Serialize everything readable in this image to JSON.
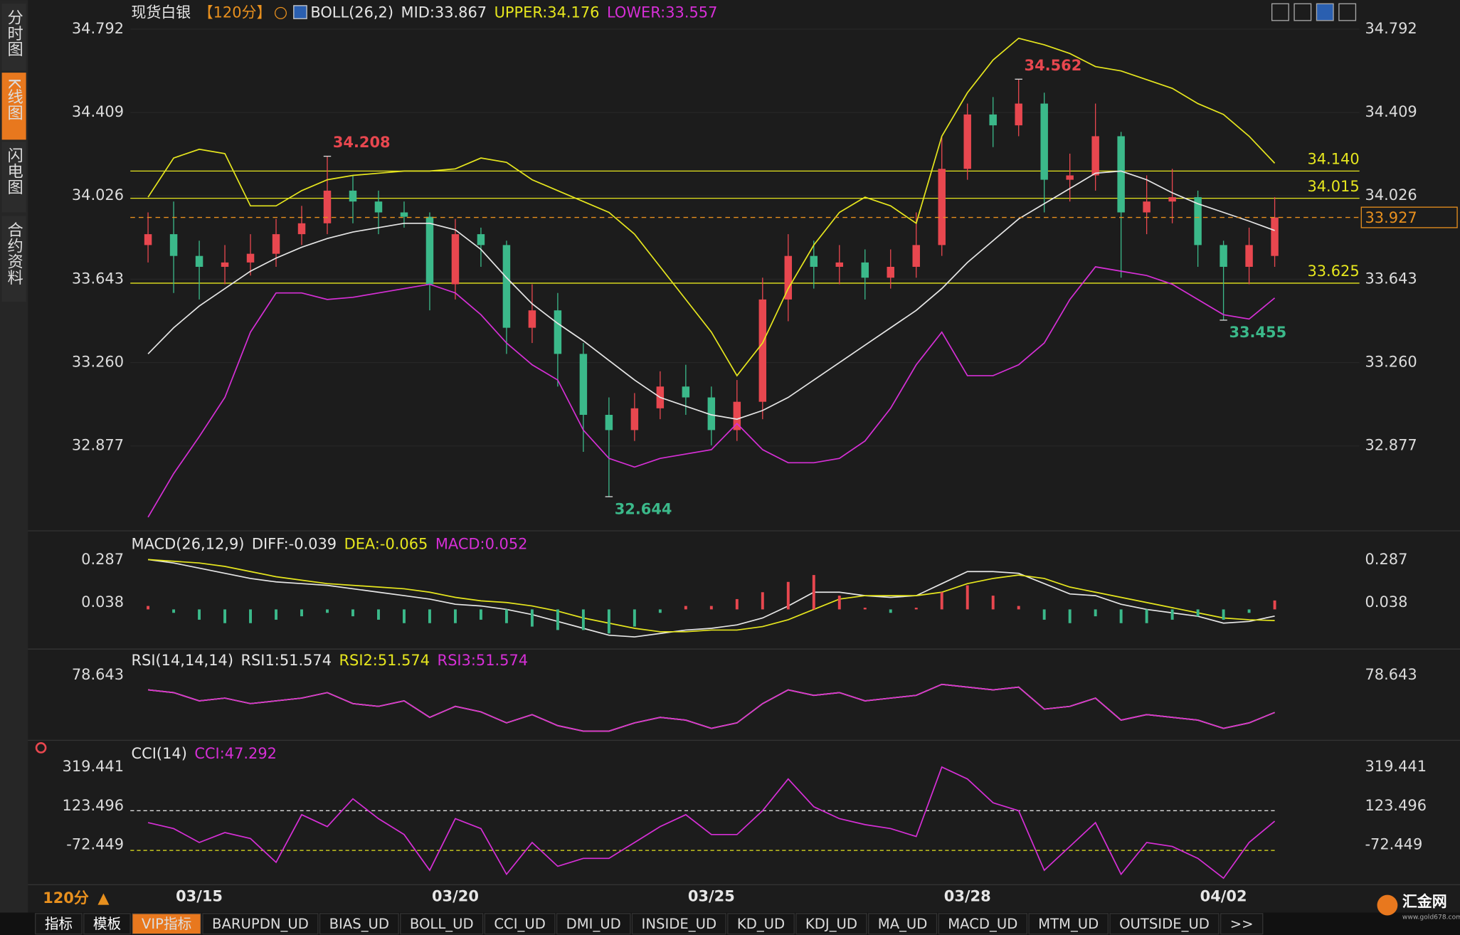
{
  "chart_data": [
    {
      "type": "candlestick",
      "title": "现货白银",
      "period_label": "【120分】",
      "indicator": "BOLL(26,2)",
      "categories": [
        null,
        null,
        "03/15",
        null,
        null,
        null,
        null,
        null,
        null,
        null,
        null,
        null,
        "03/20",
        null,
        null,
        null,
        null,
        null,
        null,
        null,
        null,
        null,
        "03/25",
        null,
        null,
        null,
        null,
        null,
        null,
        null,
        null,
        null,
        "03/28",
        null,
        null,
        null,
        null,
        null,
        null,
        null,
        null,
        null,
        "04/02",
        null,
        null
      ],
      "open": [
        33.8,
        33.85,
        33.75,
        33.7,
        33.72,
        33.76,
        33.85,
        33.9,
        34.05,
        34.0,
        33.95,
        33.93,
        33.62,
        33.85,
        33.8,
        33.42,
        33.5,
        33.3,
        33.02,
        32.95,
        33.05,
        33.15,
        33.1,
        32.95,
        33.08,
        33.55,
        33.75,
        33.7,
        33.72,
        33.65,
        33.7,
        33.8,
        34.15,
        34.4,
        34.35,
        34.45,
        34.1,
        34.12,
        34.3,
        33.95,
        34.0,
        34.02,
        33.8,
        33.7,
        33.75
      ],
      "high": [
        33.95,
        34.0,
        33.82,
        33.8,
        33.85,
        33.92,
        33.98,
        34.208,
        34.12,
        34.05,
        34.0,
        33.95,
        33.92,
        33.88,
        33.82,
        33.62,
        33.58,
        33.35,
        33.1,
        33.12,
        33.22,
        33.25,
        33.15,
        33.18,
        33.65,
        33.85,
        33.82,
        33.8,
        33.78,
        33.78,
        33.95,
        34.3,
        34.45,
        34.48,
        34.562,
        34.5,
        34.22,
        34.45,
        34.32,
        34.12,
        34.15,
        34.05,
        33.82,
        33.88,
        34.02
      ],
      "low": [
        33.72,
        33.58,
        33.55,
        33.62,
        33.66,
        33.7,
        33.8,
        33.85,
        33.9,
        33.85,
        33.88,
        33.5,
        33.55,
        33.7,
        33.3,
        33.35,
        33.15,
        32.85,
        32.644,
        32.9,
        33.0,
        33.02,
        32.88,
        32.9,
        33.0,
        33.45,
        33.6,
        33.62,
        33.55,
        33.6,
        33.65,
        33.75,
        34.1,
        34.25,
        34.3,
        33.95,
        34.0,
        34.05,
        33.65,
        33.85,
        33.9,
        33.7,
        33.455,
        33.62,
        33.7
      ],
      "close": [
        33.85,
        33.75,
        33.7,
        33.72,
        33.76,
        33.85,
        33.9,
        34.05,
        34.0,
        33.95,
        33.93,
        33.62,
        33.85,
        33.8,
        33.42,
        33.5,
        33.3,
        33.02,
        32.95,
        33.05,
        33.15,
        33.1,
        32.95,
        33.08,
        33.55,
        33.75,
        33.7,
        33.72,
        33.65,
        33.7,
        33.8,
        34.15,
        34.4,
        34.35,
        34.45,
        34.1,
        34.12,
        34.3,
        33.95,
        34.0,
        34.02,
        33.8,
        33.7,
        33.8,
        33.927
      ],
      "up_color": "#e8474f",
      "down_color": "#3bb98a",
      "series": [
        {
          "name": "MID:33.867",
          "color": "#e6e6e6",
          "values": [
            33.3,
            33.42,
            33.52,
            33.6,
            33.68,
            33.74,
            33.79,
            33.83,
            33.86,
            33.88,
            33.9,
            33.9,
            33.87,
            33.78,
            33.65,
            33.53,
            33.44,
            33.36,
            33.27,
            33.18,
            33.1,
            33.06,
            33.02,
            33.0,
            33.04,
            33.1,
            33.18,
            33.26,
            33.34,
            33.42,
            33.5,
            33.6,
            33.72,
            33.82,
            33.92,
            33.99,
            34.06,
            34.13,
            34.14,
            34.1,
            34.04,
            33.99,
            33.95,
            33.91,
            33.867
          ]
        },
        {
          "name": "UPPER:34.176",
          "color": "#e6e61e",
          "values": [
            34.02,
            34.2,
            34.24,
            34.22,
            33.98,
            33.98,
            34.05,
            34.1,
            34.12,
            34.13,
            34.14,
            34.14,
            34.15,
            34.2,
            34.18,
            34.1,
            34.05,
            34.0,
            33.95,
            33.85,
            33.7,
            33.55,
            33.4,
            33.2,
            33.35,
            33.6,
            33.8,
            33.95,
            34.02,
            33.98,
            33.9,
            34.3,
            34.5,
            34.65,
            34.75,
            34.72,
            34.68,
            34.62,
            34.6,
            34.56,
            34.52,
            34.45,
            34.4,
            34.3,
            34.176
          ]
        },
        {
          "name": "LOWER:33.557",
          "color": "#d62fd6",
          "values": [
            32.55,
            32.75,
            32.92,
            33.1,
            33.4,
            33.58,
            33.58,
            33.55,
            33.56,
            33.58,
            33.6,
            33.62,
            33.58,
            33.48,
            33.35,
            33.25,
            33.18,
            32.95,
            32.82,
            32.78,
            32.82,
            32.84,
            32.86,
            32.98,
            32.86,
            32.8,
            32.8,
            32.82,
            32.9,
            33.05,
            33.25,
            33.4,
            33.2,
            33.2,
            33.25,
            33.35,
            33.55,
            33.7,
            33.68,
            33.66,
            33.62,
            33.55,
            33.48,
            33.46,
            33.557
          ]
        }
      ],
      "ylim": [
        32.5,
        34.9
      ],
      "yticks": [
        34.792,
        34.409,
        34.026,
        33.643,
        {
          "value": 33.26,
          "label": "33.260"
        },
        32.877
      ],
      "grid": true,
      "hlines": [
        {
          "value": 34.14,
          "label": "34.140",
          "color": "#e6e61e"
        },
        {
          "value": 34.015,
          "label": "34.015",
          "color": "#e6e61e"
        },
        {
          "value": 33.625,
          "label": "33.625",
          "color": "#e6e61e"
        }
      ],
      "last_price": {
        "value": 33.927,
        "color": "#e8901e"
      },
      "annotations": [
        {
          "value": 34.208,
          "index": 7,
          "color": "#e8474f",
          "side": "high"
        },
        {
          "value": 34.562,
          "index": 34,
          "color": "#e8474f",
          "side": "high"
        },
        {
          "value": 32.644,
          "index": 18,
          "color": "#3bb98a",
          "side": "low"
        },
        {
          "value": 33.455,
          "index": 42,
          "color": "#3bb98a",
          "side": "low"
        }
      ]
    },
    {
      "type": "macd",
      "title": "MACD(26,12,9)",
      "series": [
        {
          "name": "DIFF:-0.039",
          "color": "#e6e6e6",
          "values": [
            0.29,
            0.27,
            0.24,
            0.21,
            0.18,
            0.16,
            0.15,
            0.14,
            0.12,
            0.1,
            0.08,
            0.06,
            0.03,
            0.02,
            0.0,
            -0.03,
            -0.07,
            -0.11,
            -0.15,
            -0.16,
            -0.14,
            -0.12,
            -0.11,
            -0.09,
            -0.05,
            0.02,
            0.1,
            0.1,
            0.08,
            0.07,
            0.08,
            0.15,
            0.22,
            0.22,
            0.21,
            0.15,
            0.09,
            0.08,
            0.03,
            0.0,
            -0.02,
            -0.04,
            -0.08,
            -0.07,
            -0.039
          ]
        },
        {
          "name": "DEA:-0.065",
          "color": "#e6e61e",
          "values": [
            0.29,
            0.28,
            0.27,
            0.25,
            0.22,
            0.19,
            0.17,
            0.15,
            0.14,
            0.13,
            0.12,
            0.1,
            0.07,
            0.05,
            0.04,
            0.02,
            -0.01,
            -0.05,
            -0.08,
            -0.11,
            -0.13,
            -0.13,
            -0.12,
            -0.12,
            -0.1,
            -0.06,
            0.0,
            0.06,
            0.08,
            0.08,
            0.08,
            0.1,
            0.15,
            0.18,
            0.2,
            0.18,
            0.13,
            0.1,
            0.07,
            0.04,
            0.01,
            -0.02,
            -0.05,
            -0.06,
            -0.065
          ]
        },
        {
          "name": "MACD:0.052",
          "color": "#d62fd6",
          "style": "histogram",
          "values": [
            0.02,
            -0.02,
            -0.06,
            -0.08,
            -0.08,
            -0.06,
            -0.04,
            -0.02,
            -0.04,
            -0.06,
            -0.08,
            -0.08,
            -0.08,
            -0.06,
            -0.08,
            -0.1,
            -0.12,
            -0.12,
            -0.14,
            -0.1,
            -0.02,
            0.02,
            0.02,
            0.06,
            0.1,
            0.16,
            0.2,
            0.08,
            0.01,
            -0.02,
            0.01,
            0.1,
            0.14,
            0.08,
            0.02,
            -0.06,
            -0.08,
            -0.04,
            -0.08,
            -0.08,
            -0.06,
            -0.04,
            -0.06,
            -0.02,
            0.052
          ]
        }
      ],
      "up_color": "#e8474f",
      "down_color": "#3bb98a",
      "ylim": [
        -0.22,
        0.43
      ],
      "yticks": [
        0.287,
        0.038
      ]
    },
    {
      "type": "line",
      "title": "RSI(14,14,14)",
      "series": [
        {
          "name": "RSI1:51.574",
          "color": "#e6e6e6",
          "values": [
            68,
            66,
            60,
            62,
            58,
            60,
            62,
            66,
            58,
            56,
            60,
            48,
            56,
            52,
            44,
            50,
            42,
            38,
            38,
            44,
            48,
            46,
            40,
            44,
            58,
            68,
            64,
            66,
            60,
            62,
            64,
            72,
            70,
            68,
            70,
            54,
            56,
            62,
            46,
            50,
            48,
            46,
            40,
            44,
            51.574
          ]
        },
        {
          "name": "RSI2:51.574",
          "color": "#e6e61e",
          "values": [
            68,
            66,
            60,
            62,
            58,
            60,
            62,
            66,
            58,
            56,
            60,
            48,
            56,
            52,
            44,
            50,
            42,
            38,
            38,
            44,
            48,
            46,
            40,
            44,
            58,
            68,
            64,
            66,
            60,
            62,
            64,
            72,
            70,
            68,
            70,
            54,
            56,
            62,
            46,
            50,
            48,
            46,
            40,
            44,
            51.574
          ]
        },
        {
          "name": "RSI3:51.574",
          "color": "#d62fd6",
          "values": [
            68,
            66,
            60,
            62,
            58,
            60,
            62,
            66,
            58,
            56,
            60,
            48,
            56,
            52,
            44,
            50,
            42,
            38,
            38,
            44,
            48,
            46,
            40,
            44,
            58,
            68,
            64,
            66,
            60,
            62,
            64,
            72,
            70,
            68,
            70,
            54,
            56,
            62,
            46,
            50,
            48,
            46,
            40,
            44,
            51.574
          ]
        }
      ],
      "ylim": [
        31.3,
        95.6
      ],
      "yticks": [
        78.643
      ]
    },
    {
      "type": "line",
      "title": "CCI(14)",
      "series": [
        {
          "name": "CCI:47.292",
          "color": "#d62fd6",
          "values": [
            40,
            10,
            -60,
            -10,
            -40,
            -160,
            80,
            20,
            160,
            60,
            -20,
            -200,
            60,
            10,
            -220,
            -60,
            -180,
            -140,
            -140,
            -60,
            20,
            80,
            -20,
            -20,
            100,
            260,
            120,
            60,
            30,
            10,
            -30,
            320,
            260,
            140,
            100,
            -200,
            -80,
            40,
            -220,
            -60,
            -80,
            -140,
            -240,
            -60,
            47.292
          ]
        }
      ],
      "hlines": [
        {
          "value": 100,
          "color": "#dcdcdc"
        },
        {
          "value": -100,
          "color": "#e6e61e"
        }
      ],
      "ylim": [
        -296,
        431
      ],
      "yticks": [
        319.441,
        123.496,
        -72.449
      ]
    }
  ],
  "sidebar": {
    "items": [
      "分时图",
      "K线图",
      "闪电图",
      "合约资料"
    ],
    "active": 1
  },
  "period": "120分",
  "toolbar": {
    "tabs": [
      "指标",
      "模板",
      "VIP指标",
      "BARUPDN_UD",
      "BIAS_UD",
      "BOLL_UD",
      "CCI_UD",
      "DMI_UD",
      "INSIDE_UD",
      "KD_UD",
      "KDJ_UD",
      "MA_UD",
      "MACD_UD",
      "MTM_UD",
      "OUTSIDE_UD",
      ">>"
    ],
    "active": 2
  },
  "logo": {
    "name": "汇金网",
    "url": "www.gold678.com"
  }
}
